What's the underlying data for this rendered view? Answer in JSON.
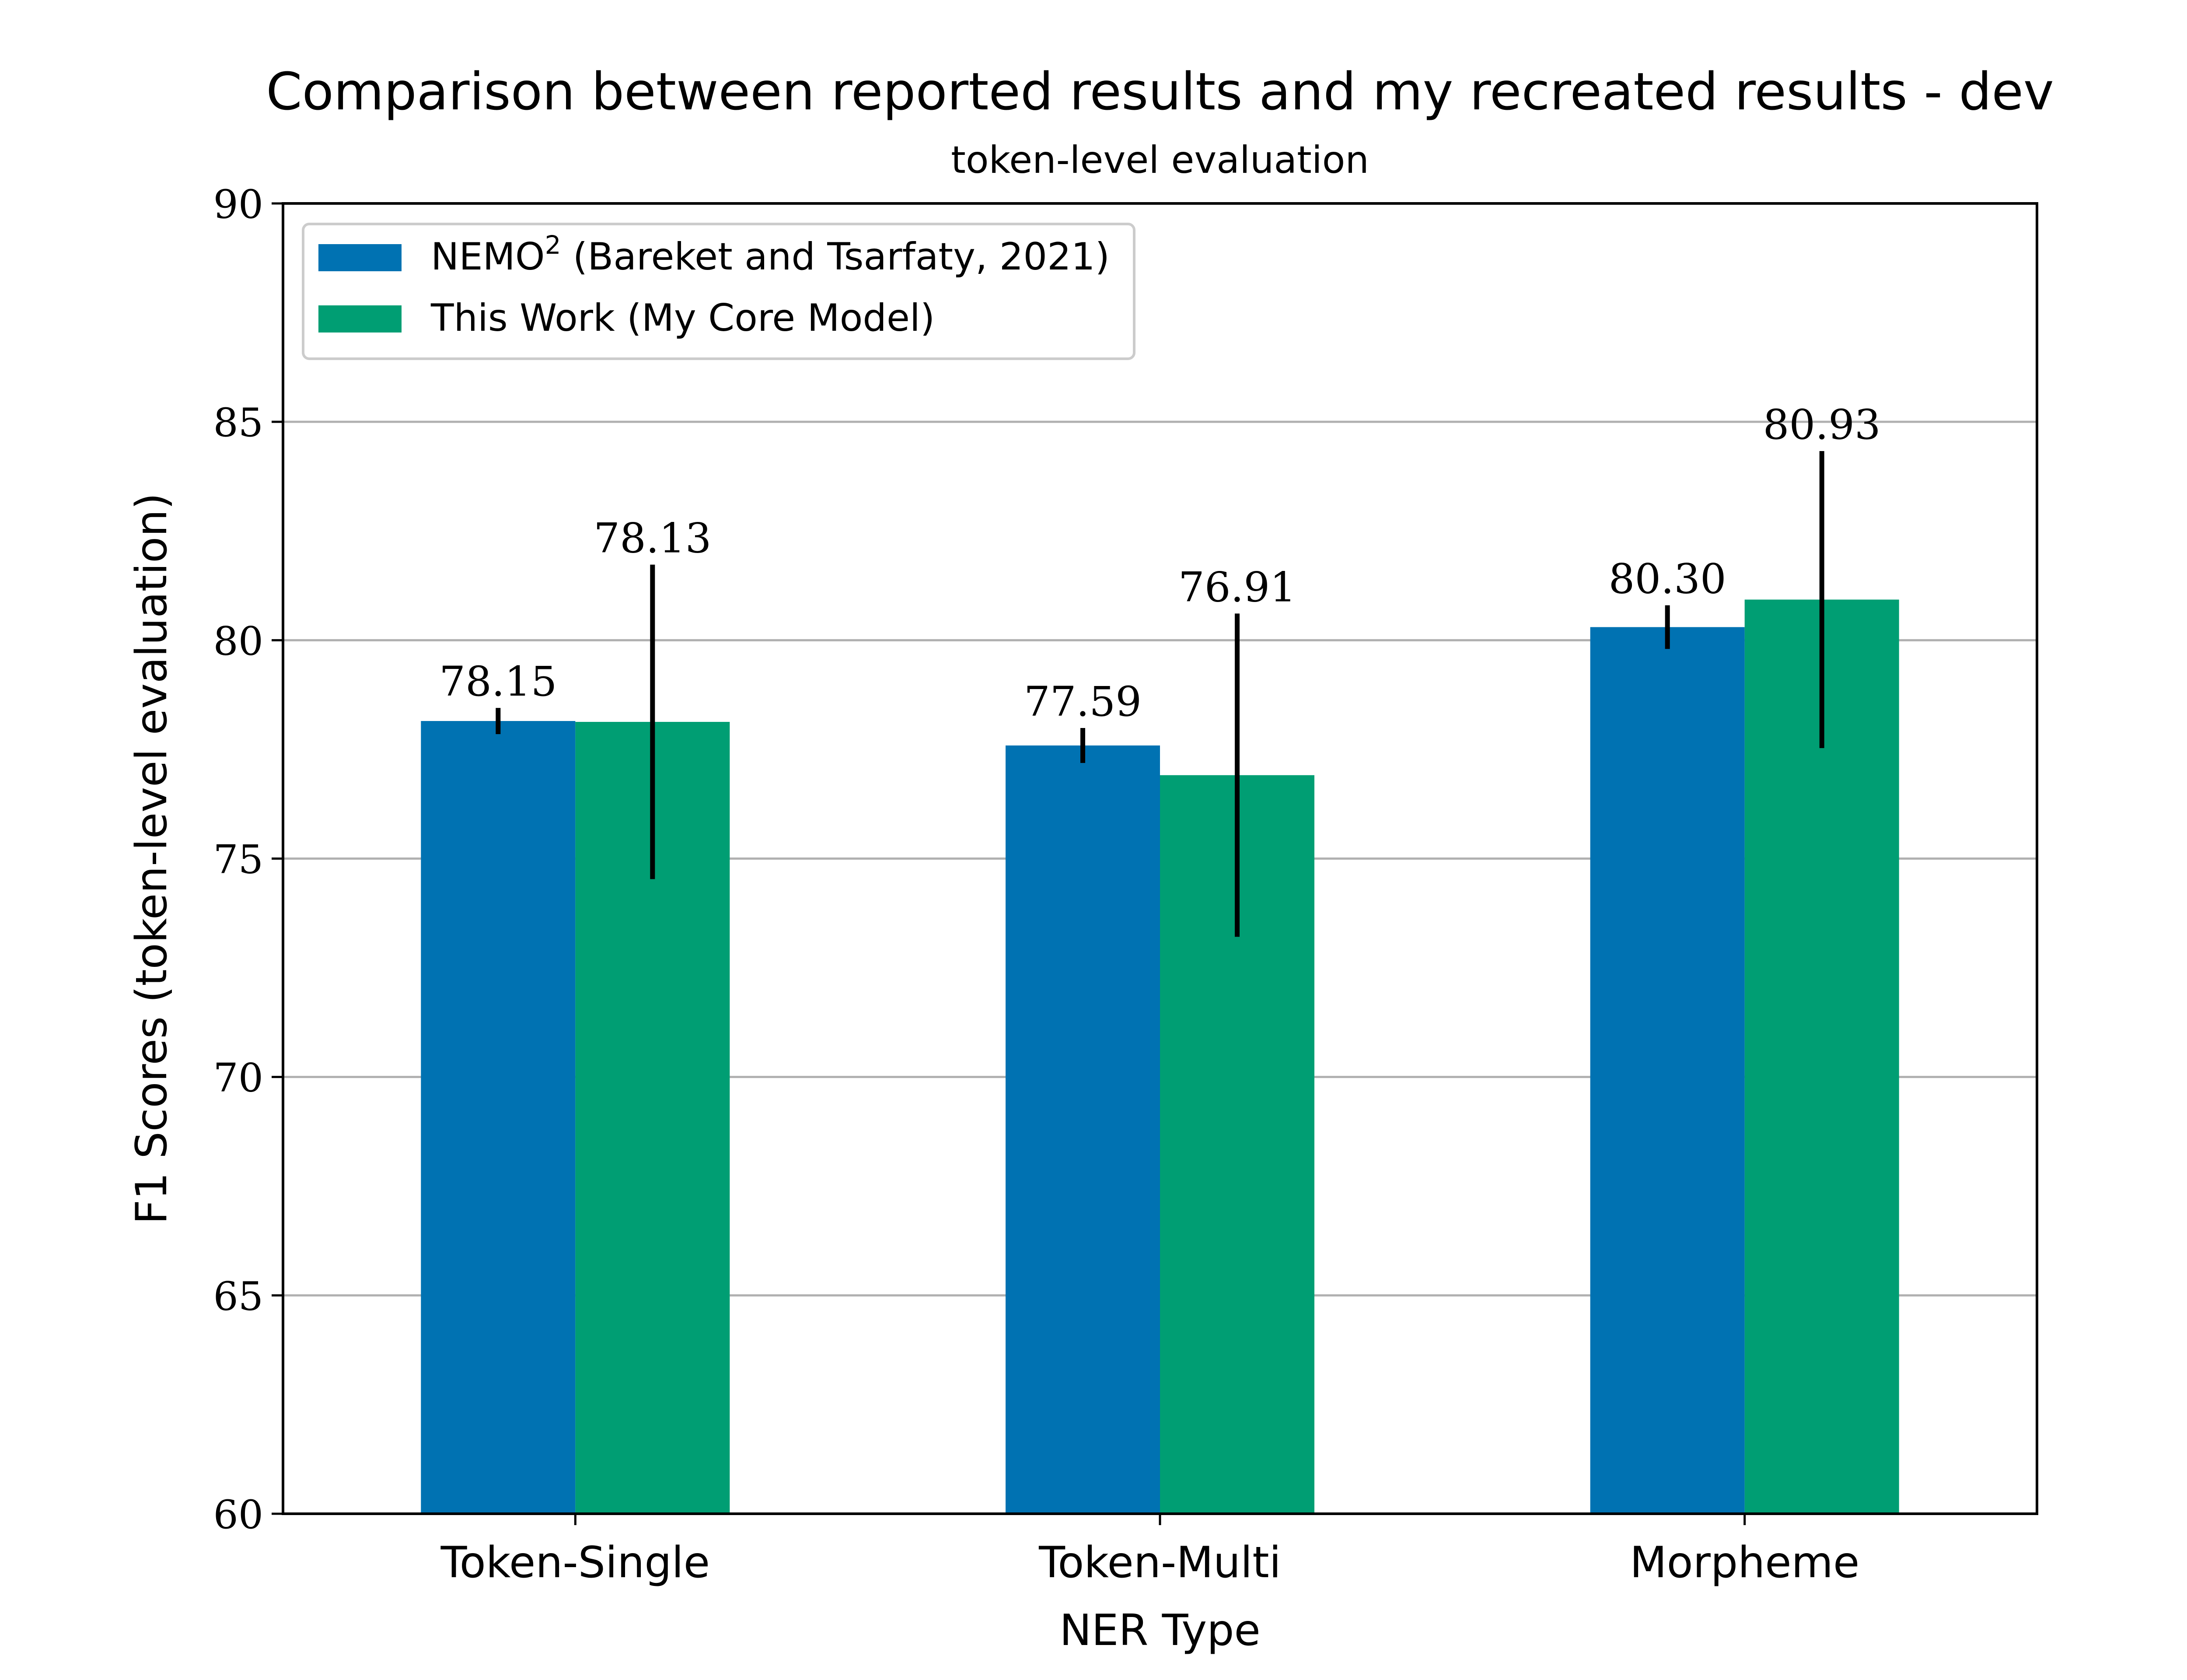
{
  "chart_data": {
    "type": "bar",
    "title": "Comparison between reported results and my recreated results - dev",
    "subtitle": "token-level evaluation",
    "xlabel": "NER Type",
    "ylabel": "F1 Scores (token-level evaluation)",
    "categories": [
      "Token-Single",
      "Token-Multi",
      "Morpheme"
    ],
    "ylim": [
      60,
      90
    ],
    "yticks": [
      60,
      65,
      70,
      75,
      80,
      85,
      90
    ],
    "grid": "y",
    "legend_position": "top-left",
    "series": [
      {
        "name": "NEMO",
        "name_superscript": "2",
        "name_suffix": " (Bareket and Tsarfaty, 2021)",
        "color": "#0072b2",
        "values": [
          78.15,
          77.59,
          80.3
        ],
        "labels": [
          "78.15",
          "77.59",
          "80.30"
        ],
        "errors": [
          0.3,
          0.4,
          0.5
        ]
      },
      {
        "name": "This Work (My Core Model)",
        "color": "#009e73",
        "values": [
          78.13,
          76.91,
          80.93
        ],
        "labels": [
          "78.13",
          "76.91",
          "80.93"
        ],
        "errors": [
          3.6,
          3.7,
          3.4
        ]
      }
    ]
  }
}
